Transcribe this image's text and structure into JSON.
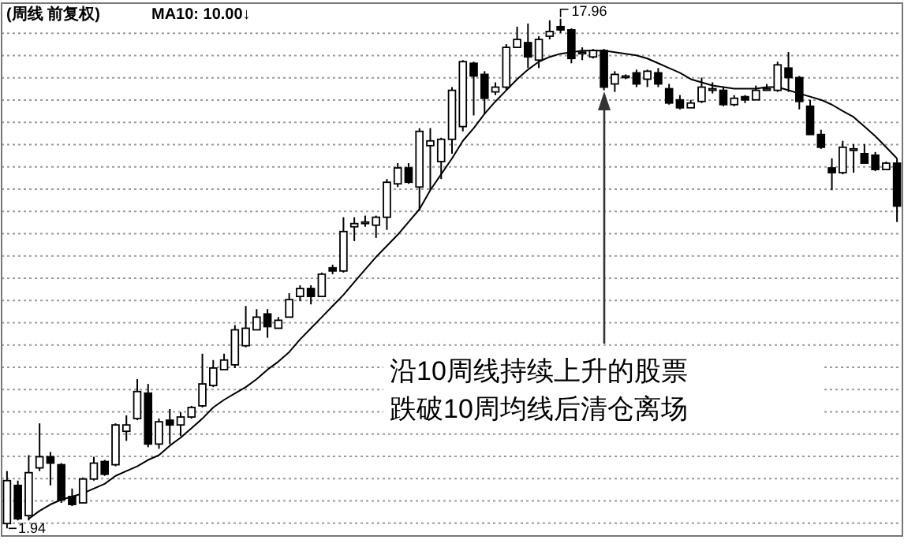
{
  "chart_data": {
    "type": "candlestick",
    "title": "(周线 前复权)",
    "subtitle": "MA10: 10.00↓",
    "categories": [
      null,
      null,
      null,
      null,
      null,
      null,
      null,
      null,
      null,
      null,
      null,
      null,
      null,
      null,
      null,
      null,
      null,
      null,
      null,
      null,
      null,
      null,
      null,
      null,
      null,
      null,
      null,
      null,
      null,
      null,
      null,
      null,
      null,
      null,
      null,
      null,
      null,
      null,
      null,
      null,
      null,
      null,
      null,
      null,
      null,
      null,
      null,
      null,
      null,
      null,
      null,
      null,
      null,
      null,
      null,
      null,
      null,
      null,
      null,
      null,
      null,
      null,
      null,
      null,
      null,
      null,
      null,
      null,
      null,
      null,
      null,
      null,
      null,
      null,
      null,
      null,
      null,
      null,
      null,
      null,
      null,
      null,
      null
    ],
    "color": "#000000",
    "ohlc": [
      [
        2.09,
        3.74,
        1.94,
        3.44
      ],
      [
        3.29,
        3.44,
        2.19,
        2.24
      ],
      [
        2.34,
        4.24,
        2.19,
        3.69
      ],
      [
        3.84,
        5.24,
        3.74,
        4.19
      ],
      [
        4.19,
        4.34,
        3.29,
        3.99
      ],
      [
        3.94,
        3.99,
        2.74,
        2.84
      ],
      [
        2.94,
        3.19,
        2.64,
        2.69
      ],
      [
        2.74,
        3.54,
        2.74,
        3.49
      ],
      [
        3.49,
        4.19,
        3.44,
        3.99
      ],
      [
        4.04,
        4.09,
        3.59,
        3.64
      ],
      [
        3.94,
        5.24,
        3.89,
        5.19
      ],
      [
        4.99,
        5.49,
        4.69,
        5.19
      ],
      [
        5.39,
        6.63,
        5.34,
        6.24
      ],
      [
        6.19,
        6.48,
        4.49,
        4.59
      ],
      [
        4.59,
        5.39,
        4.44,
        5.29
      ],
      [
        5.34,
        5.69,
        4.59,
        5.19
      ],
      [
        5.19,
        5.59,
        4.84,
        5.44
      ],
      [
        5.44,
        5.79,
        5.39,
        5.74
      ],
      [
        5.79,
        7.43,
        5.74,
        6.48
      ],
      [
        6.43,
        7.23,
        6.38,
        6.98
      ],
      [
        6.93,
        7.43,
        6.93,
        7.23
      ],
      [
        7.08,
        8.33,
        6.98,
        8.18
      ],
      [
        7.68,
        8.93,
        7.63,
        8.23
      ],
      [
        8.18,
        8.83,
        8.18,
        8.58
      ],
      [
        8.68,
        8.83,
        7.93,
        8.28
      ],
      [
        8.23,
        8.58,
        8.23,
        8.48
      ],
      [
        8.58,
        9.33,
        8.58,
        9.13
      ],
      [
        9.23,
        9.58,
        9.08,
        9.48
      ],
      [
        9.48,
        9.58,
        8.98,
        9.23
      ],
      [
        9.23,
        9.98,
        9.23,
        9.93
      ],
      [
        10.13,
        10.23,
        9.93,
        10.03
      ],
      [
        10.03,
        11.72,
        9.98,
        11.27
      ],
      [
        11.42,
        11.72,
        10.97,
        11.52
      ],
      [
        11.52,
        11.77,
        11.42,
        11.57
      ],
      [
        11.47,
        11.77,
        11.07,
        11.72
      ],
      [
        11.72,
        12.92,
        11.32,
        12.82
      ],
      [
        12.77,
        13.42,
        12.67,
        13.27
      ],
      [
        13.27,
        13.42,
        12.77,
        12.82
      ],
      [
        12.67,
        14.52,
        11.92,
        14.42
      ],
      [
        13.97,
        14.52,
        12.57,
        14.12
      ],
      [
        13.47,
        14.22,
        12.92,
        14.17
      ],
      [
        14.17,
        15.81,
        13.72,
        15.71
      ],
      [
        14.57,
        16.66,
        14.42,
        16.61
      ],
      [
        16.56,
        16.61,
        14.92,
        16.16
      ],
      [
        16.21,
        16.31,
        14.97,
        15.46
      ],
      [
        15.66,
        15.96,
        15.56,
        15.81
      ],
      [
        15.81,
        17.16,
        15.71,
        17.06
      ],
      [
        17.06,
        17.71,
        17.06,
        17.31
      ],
      [
        17.21,
        17.81,
        16.41,
        16.76
      ],
      [
        16.66,
        17.41,
        16.41,
        17.31
      ],
      [
        17.41,
        17.91,
        17.31,
        17.56
      ],
      [
        17.71,
        17.96,
        17.51,
        17.61
      ],
      [
        17.61,
        17.66,
        16.56,
        16.71
      ],
      [
        16.86,
        17.06,
        16.66,
        16.91
      ],
      [
        16.76,
        17.01,
        16.71,
        16.96
      ],
      [
        16.96,
        17.01,
        15.71,
        15.81
      ],
      [
        15.91,
        16.31,
        15.66,
        16.21
      ],
      [
        16.11,
        16.21,
        16.06,
        16.16
      ],
      [
        16.26,
        16.36,
        15.81,
        15.91
      ],
      [
        16.06,
        16.36,
        15.81,
        16.31
      ],
      [
        16.26,
        16.41,
        15.81,
        15.91
      ],
      [
        15.76,
        15.91,
        15.26,
        15.31
      ],
      [
        15.41,
        15.56,
        15.11,
        15.16
      ],
      [
        15.16,
        15.41,
        15.16,
        15.31
      ],
      [
        15.36,
        16.11,
        15.31,
        15.81
      ],
      [
        15.71,
        15.96,
        15.61,
        15.76
      ],
      [
        15.71,
        15.81,
        15.21,
        15.26
      ],
      [
        15.26,
        15.56,
        15.21,
        15.46
      ],
      [
        15.51,
        15.56,
        15.31,
        15.41
      ],
      [
        15.41,
        15.86,
        15.41,
        15.71
      ],
      [
        15.71,
        15.91,
        15.71,
        15.76
      ],
      [
        15.71,
        16.61,
        15.66,
        16.51
      ],
      [
        16.41,
        16.91,
        15.66,
        16.11
      ],
      [
        16.11,
        16.16,
        15.11,
        15.36
      ],
      [
        15.21,
        15.41,
        14.32,
        14.32
      ],
      [
        14.32,
        14.47,
        13.87,
        13.92
      ],
      [
        13.27,
        13.57,
        12.57,
        13.12
      ],
      [
        13.12,
        14.12,
        13.07,
        13.92
      ],
      [
        13.82,
        14.02,
        13.12,
        13.87
      ],
      [
        13.72,
        14.02,
        13.42,
        13.42
      ],
      [
        13.67,
        13.77,
        13.17,
        13.22
      ],
      [
        13.22,
        13.47,
        13.22,
        13.42
      ],
      [
        13.42,
        13.57,
        11.57,
        12.07
      ]
    ],
    "series": [
      {
        "type": "line",
        "color": "#000000",
        "values": [
          null,
          null,
          2.24,
          2.49,
          2.69,
          2.84,
          2.94,
          3.04,
          3.19,
          3.34,
          3.59,
          3.74,
          3.89,
          4.09,
          4.24,
          4.54,
          4.79,
          5.09,
          5.39,
          5.74,
          5.98,
          6.18,
          6.38,
          6.63,
          6.93,
          7.18,
          7.48,
          7.88,
          8.23,
          8.58,
          8.93,
          9.28,
          9.68,
          10.08,
          10.47,
          10.82,
          11.17,
          11.57,
          11.97,
          12.57,
          13.07,
          13.57,
          14.12,
          14.52,
          14.97,
          15.36,
          15.71,
          16.06,
          16.36,
          16.61,
          16.76,
          16.86,
          16.91,
          16.96,
          16.96,
          16.96,
          16.91,
          16.86,
          16.81,
          16.71,
          16.56,
          16.41,
          16.26,
          16.06,
          15.96,
          15.86,
          15.81,
          15.76,
          15.76,
          15.76,
          15.81,
          15.81,
          15.71,
          15.61,
          15.51,
          15.41,
          15.26,
          15.06,
          14.87,
          14.57,
          14.27,
          13.92,
          13.57
        ]
      }
    ],
    "ylim": [
      1.7,
      18.45
    ],
    "yticks": [
      {
        "value": 17.5,
        "label": null
      },
      {
        "value": 16.8,
        "label": null
      },
      {
        "value": 16.1,
        "label": null
      },
      {
        "value": 15.4,
        "label": null
      },
      {
        "value": 14.7,
        "label": null
      },
      {
        "value": 14.0,
        "label": null
      },
      {
        "value": 13.3,
        "label": null
      },
      {
        "value": 12.6,
        "label": null
      },
      {
        "value": 11.9,
        "label": null
      },
      {
        "value": 11.2,
        "label": null
      },
      {
        "value": 10.5,
        "label": null
      },
      {
        "value": 9.8,
        "label": null
      },
      {
        "value": 9.1,
        "label": null
      },
      {
        "value": 8.4,
        "label": null
      },
      {
        "value": 7.7,
        "label": null
      },
      {
        "value": 7.0,
        "label": null
      },
      {
        "value": 6.3,
        "label": null
      },
      {
        "value": 5.6,
        "label": null
      },
      {
        "value": 4.9,
        "label": null
      },
      {
        "value": 4.2,
        "label": null
      },
      {
        "value": 3.5,
        "label": null
      },
      {
        "value": 2.8,
        "label": null
      },
      {
        "value": 2.1,
        "label": null
      }
    ],
    "grid": "y",
    "annotations": [
      "17.96",
      "1.94",
      "沿10周线持续上升的股票",
      "跌破10周均线后清仓离场"
    ]
  }
}
